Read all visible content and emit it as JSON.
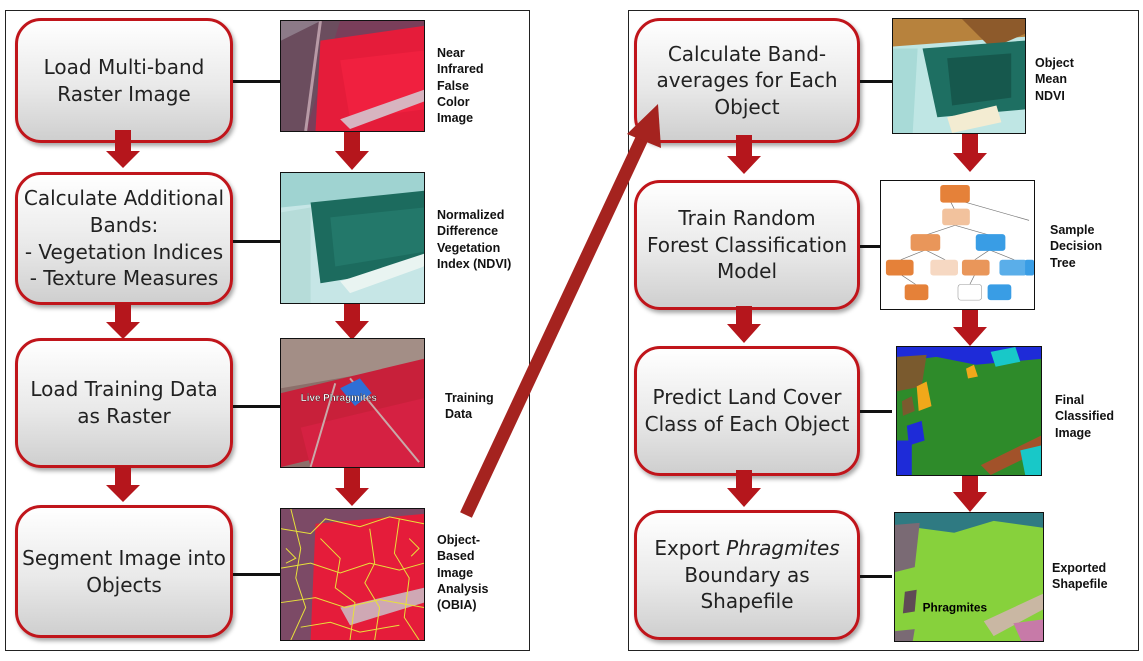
{
  "left_panel": {
    "steps": [
      {
        "label": "Load Multi-band\nRaster Image"
      },
      {
        "label": "Calculate Additional\nBands:\n- Vegetation Indices\n- Texture Measures"
      },
      {
        "label": "Load Training Data\nas Raster"
      },
      {
        "label": "Segment Image into\nObjects"
      }
    ],
    "images": [
      {
        "caption": "Near\nInfrared\nFalse\nColor\nImage"
      },
      {
        "caption": "Normalized\nDifference\nVegetation\nIndex (NDVI)"
      },
      {
        "caption": "Training\nData",
        "overlay_label": "Live Phragmites"
      },
      {
        "caption": "Object-\nBased\nImage\nAnalysis\n(OBIA)"
      }
    ]
  },
  "right_panel": {
    "steps": [
      {
        "label": "Calculate Band-\naverages for Each\nObject"
      },
      {
        "label": "Train Random\nForest Classification\nModel"
      },
      {
        "label": "Predict Land Cover\nClass of Each Object"
      },
      {
        "label_before": "Export ",
        "label_italic": "Phragmites",
        "label_after": "\nBoundary as\nShapefile"
      }
    ],
    "images": [
      {
        "caption": "Object\nMean\nNDVI"
      },
      {
        "caption": "Sample\nDecision\nTree"
      },
      {
        "caption": "Final\nClassified\nImage"
      },
      {
        "caption": "Exported\nShapefile",
        "overlay_label": "Phragmites"
      }
    ]
  },
  "colors": {
    "step_border": "#c0151b",
    "arrow": "#b5161c",
    "long_arrow": "#a5231f"
  }
}
